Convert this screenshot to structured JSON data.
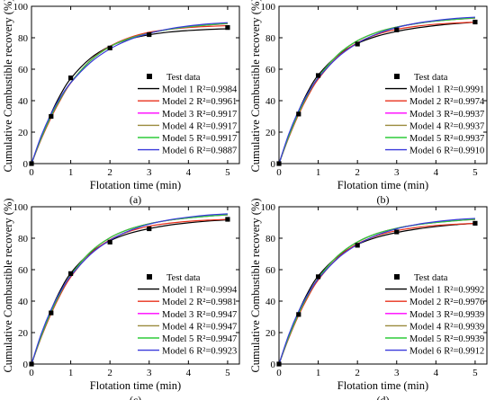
{
  "chart_data": [
    {
      "type": "line",
      "panel_label": "(a)",
      "xlabel": "Flotation time (min)",
      "ylabel": "Cumulative Combustible recovery (%)",
      "xlim": [
        0,
        5.3
      ],
      "ylim": [
        0,
        100
      ],
      "xticks": [
        0,
        1,
        2,
        3,
        4,
        5
      ],
      "yticks": [
        0,
        20,
        40,
        60,
        80,
        100
      ],
      "legend_position": "bottom-right",
      "test_data": {
        "name": "Test data",
        "x": [
          0,
          0.5,
          1,
          2,
          3,
          5
        ],
        "y": [
          0,
          30,
          54.5,
          73.5,
          82,
          86.5
        ]
      },
      "series": [
        {
          "name": "Model 1",
          "r2": "R²=0.9984",
          "color": "#000000",
          "x": [
            0,
            0.25,
            0.5,
            0.75,
            1,
            1.5,
            2,
            2.5,
            3,
            3.5,
            4,
            4.5,
            5
          ],
          "y": [
            0,
            16.7,
            31.8,
            44.3,
            54.1,
            66.9,
            74.6,
            79.2,
            81.9,
            83.6,
            84.6,
            85.3,
            85.7
          ]
        },
        {
          "name": "Model 2",
          "r2": "R²=0.9961",
          "color": "#e8301c",
          "x": [
            0,
            0.25,
            0.5,
            0.75,
            1,
            1.5,
            2,
            2.5,
            3,
            3.5,
            4,
            4.5,
            5
          ],
          "y": [
            0,
            15.6,
            29.3,
            41.1,
            51.2,
            65.6,
            74.6,
            80.1,
            83.5,
            85.3,
            86.5,
            87.2,
            87.7
          ]
        },
        {
          "name": "Model 3",
          "r2": "R²=0.9917",
          "color": "#ff00ff",
          "x": [
            0,
            0.25,
            0.5,
            0.75,
            1,
            1.5,
            2,
            2.5,
            3,
            3.5,
            4,
            4.5,
            5
          ],
          "y": [
            0,
            16.4,
            30.3,
            41.8,
            51.5,
            65.4,
            74.3,
            79.6,
            82.9,
            85.3,
            87.0,
            88.1,
            89.0
          ]
        },
        {
          "name": "Model 4",
          "r2": "R²=0.9917",
          "color": "#9a8a3c",
          "x": [
            0,
            0.25,
            0.5,
            0.75,
            1,
            1.5,
            2,
            2.5,
            3,
            3.5,
            4,
            4.5,
            5
          ],
          "y": [
            0,
            16.4,
            30.3,
            41.8,
            51.5,
            65.4,
            74.3,
            79.6,
            82.9,
            85.3,
            87.0,
            88.1,
            89.0
          ]
        },
        {
          "name": "Model 5",
          "r2": "R²=0.9917",
          "color": "#2ecc3a",
          "x": [
            0,
            0.25,
            0.5,
            0.75,
            1,
            1.5,
            2,
            2.5,
            3,
            3.5,
            4,
            4.5,
            5
          ],
          "y": [
            0,
            16.4,
            30.3,
            41.8,
            51.5,
            65.4,
            74.3,
            79.6,
            82.9,
            85.3,
            87.0,
            88.1,
            89.3
          ]
        },
        {
          "name": "Model 6",
          "r2": "R²=0.9887",
          "color": "#3a3adb",
          "x": [
            0,
            0.25,
            0.5,
            0.75,
            1,
            1.5,
            2,
            2.5,
            3,
            3.5,
            4,
            4.5,
            5
          ],
          "y": [
            0,
            17.7,
            31.6,
            42.6,
            51.4,
            64.2,
            72.9,
            78.8,
            82.8,
            85.6,
            87.5,
            88.8,
            89.6
          ]
        }
      ]
    },
    {
      "type": "line",
      "panel_label": "(b)",
      "xlabel": "Flotation time (min)",
      "ylabel": "Cumulative Combustible recovery (%)",
      "xlim": [
        0,
        5.3
      ],
      "ylim": [
        0,
        100
      ],
      "xticks": [
        0,
        1,
        2,
        3,
        4,
        5
      ],
      "yticks": [
        0,
        20,
        40,
        60,
        80,
        100
      ],
      "legend_position": "bottom-right",
      "test_data": {
        "name": "Test data",
        "x": [
          0,
          0.5,
          1,
          2,
          3,
          5
        ],
        "y": [
          0,
          31.5,
          56,
          76,
          85,
          90
        ]
      },
      "series": [
        {
          "name": "Model 1",
          "r2": "R²=0.9991",
          "color": "#000000",
          "x": [
            0,
            0.25,
            0.5,
            0.75,
            1,
            1.5,
            2,
            2.5,
            3,
            3.5,
            4,
            4.5,
            5
          ],
          "y": [
            0,
            17.5,
            33.4,
            46.4,
            56.3,
            68.9,
            76.4,
            81.0,
            84.0,
            86.2,
            87.8,
            89.0,
            89.9
          ]
        },
        {
          "name": "Model 2",
          "r2": "R²=0.9974",
          "color": "#e8301c",
          "x": [
            0,
            0.25,
            0.5,
            0.75,
            1,
            1.5,
            2,
            2.5,
            3,
            3.5,
            4,
            4.5,
            5
          ],
          "y": [
            0,
            16.6,
            31.2,
            43.5,
            53.7,
            68.0,
            76.8,
            82.1,
            85.3,
            87.3,
            88.6,
            89.4,
            89.9
          ]
        },
        {
          "name": "Model 3",
          "r2": "R²=0.9937",
          "color": "#ff00ff",
          "x": [
            0,
            0.25,
            0.5,
            0.75,
            1,
            1.5,
            2,
            2.5,
            3,
            3.5,
            4,
            4.5,
            5
          ],
          "y": [
            0,
            17.4,
            32.3,
            44.6,
            54.8,
            69.2,
            78.1,
            83.5,
            86.8,
            89.0,
            90.6,
            91.7,
            92.5
          ]
        },
        {
          "name": "Model 4",
          "r2": "R²=0.9937",
          "color": "#9a8a3c",
          "x": [
            0,
            0.25,
            0.5,
            0.75,
            1,
            1.5,
            2,
            2.5,
            3,
            3.5,
            4,
            4.5,
            5
          ],
          "y": [
            0,
            17.4,
            32.3,
            44.6,
            54.8,
            69.2,
            78.1,
            83.5,
            86.8,
            89.0,
            90.6,
            91.7,
            92.5
          ]
        },
        {
          "name": "Model 5",
          "r2": "R²=0.9937",
          "color": "#2ecc3a",
          "x": [
            0,
            0.25,
            0.5,
            0.75,
            1,
            1.5,
            2,
            2.5,
            3,
            3.5,
            4,
            4.5,
            5
          ],
          "y": [
            0,
            17.4,
            32.3,
            44.6,
            54.8,
            69.2,
            78.1,
            83.5,
            86.8,
            89.0,
            90.6,
            91.7,
            92.7
          ]
        },
        {
          "name": "Model 6",
          "r2": "R²=0.9910",
          "color": "#3a3adb",
          "x": [
            0,
            0.25,
            0.5,
            0.75,
            1,
            1.5,
            2,
            2.5,
            3,
            3.5,
            4,
            4.5,
            5
          ],
          "y": [
            0,
            18.8,
            33.6,
            45.2,
            54.4,
            67.6,
            76.5,
            82.5,
            86.5,
            89.2,
            91.0,
            92.3,
            93.1
          ]
        }
      ]
    },
    {
      "type": "line",
      "panel_label": "(c)",
      "xlabel": "Flotation time (min)",
      "ylabel": "Cumulative Combustible recovery (%)",
      "xlim": [
        0,
        5.3
      ],
      "ylim": [
        0,
        100
      ],
      "xticks": [
        0,
        1,
        2,
        3,
        4,
        5
      ],
      "yticks": [
        0,
        20,
        40,
        60,
        80,
        100
      ],
      "legend_position": "bottom-right",
      "test_data": {
        "name": "Test data",
        "x": [
          0,
          0.5,
          1,
          2,
          3,
          5
        ],
        "y": [
          0,
          32.5,
          57.5,
          77.5,
          86,
          92
        ]
      },
      "series": [
        {
          "name": "Model 1",
          "r2": "R²=0.9994",
          "color": "#000000",
          "x": [
            0,
            0.25,
            0.5,
            0.75,
            1,
            1.5,
            2,
            2.5,
            3,
            3.5,
            4,
            4.5,
            5
          ],
          "y": [
            0,
            18.0,
            34.3,
            47.6,
            57.8,
            70.7,
            78.4,
            83.1,
            86.1,
            88.3,
            89.8,
            90.9,
            91.7
          ]
        },
        {
          "name": "Model 2",
          "r2": "R²=0.9981",
          "color": "#e8301c",
          "x": [
            0,
            0.25,
            0.5,
            0.75,
            1,
            1.5,
            2,
            2.5,
            3,
            3.5,
            4,
            4.5,
            5
          ],
          "y": [
            0,
            17.1,
            32.1,
            44.8,
            55.3,
            70.0,
            79.0,
            84.4,
            87.6,
            89.5,
            90.7,
            91.5,
            92.0
          ]
        },
        {
          "name": "Model 3",
          "r2": "R²=0.9947",
          "color": "#ff00ff",
          "x": [
            0,
            0.25,
            0.5,
            0.75,
            1,
            1.5,
            2,
            2.5,
            3,
            3.5,
            4,
            4.5,
            5
          ],
          "y": [
            0,
            17.9,
            33.2,
            45.9,
            56.4,
            71.2,
            80.3,
            85.8,
            89.2,
            91.4,
            92.9,
            94.0,
            94.8
          ]
        },
        {
          "name": "Model 4",
          "r2": "R²=0.9947",
          "color": "#9a8a3c",
          "x": [
            0,
            0.25,
            0.5,
            0.75,
            1,
            1.5,
            2,
            2.5,
            3,
            3.5,
            4,
            4.5,
            5
          ],
          "y": [
            0,
            17.9,
            33.2,
            45.9,
            56.4,
            71.2,
            80.3,
            85.8,
            89.2,
            91.4,
            92.9,
            94.0,
            94.8
          ]
        },
        {
          "name": "Model 5",
          "r2": "R²=0.9947",
          "color": "#2ecc3a",
          "x": [
            0,
            0.25,
            0.5,
            0.75,
            1,
            1.5,
            2,
            2.5,
            3,
            3.5,
            4,
            4.5,
            5
          ],
          "y": [
            0,
            17.9,
            33.2,
            45.9,
            56.4,
            71.2,
            80.3,
            85.8,
            89.2,
            91.4,
            92.9,
            94.0,
            95.0
          ]
        },
        {
          "name": "Model 6",
          "r2": "R²=0.9923",
          "color": "#3a3adb",
          "x": [
            0,
            0.25,
            0.5,
            0.75,
            1,
            1.5,
            2,
            2.5,
            3,
            3.5,
            4,
            4.5,
            5
          ],
          "y": [
            0,
            19.3,
            34.6,
            46.5,
            56.0,
            69.6,
            78.7,
            84.8,
            88.9,
            91.6,
            93.4,
            94.7,
            95.5
          ]
        }
      ]
    },
    {
      "type": "line",
      "panel_label": "(d)",
      "xlabel": "Flotation time (min)",
      "ylabel": "Cumulative Combustible recovery (%)",
      "xlim": [
        0,
        5.3
      ],
      "ylim": [
        0,
        100
      ],
      "xticks": [
        0,
        1,
        2,
        3,
        4,
        5
      ],
      "yticks": [
        0,
        20,
        40,
        60,
        80,
        100
      ],
      "legend_position": "bottom-right",
      "test_data": {
        "name": "Test data",
        "x": [
          0,
          0.5,
          1,
          2,
          3,
          5
        ],
        "y": [
          0,
          31.5,
          55.5,
          75.5,
          84,
          89.5
        ]
      },
      "series": [
        {
          "name": "Model 1",
          "r2": "R²=0.9992",
          "color": "#000000",
          "x": [
            0,
            0.25,
            0.5,
            0.75,
            1,
            1.5,
            2,
            2.5,
            3,
            3.5,
            4,
            4.5,
            5
          ],
          "y": [
            0,
            17.4,
            33.2,
            46.1,
            56.0,
            68.5,
            76.0,
            80.6,
            83.6,
            85.8,
            87.4,
            88.6,
            89.4
          ]
        },
        {
          "name": "Model 2",
          "r2": "R²=0.9976",
          "color": "#e8301c",
          "x": [
            0,
            0.25,
            0.5,
            0.75,
            1,
            1.5,
            2,
            2.5,
            3,
            3.5,
            4,
            4.5,
            5
          ],
          "y": [
            0,
            16.5,
            31.0,
            43.2,
            53.4,
            67.6,
            76.4,
            81.6,
            84.8,
            86.8,
            88.1,
            88.9,
            89.4
          ]
        },
        {
          "name": "Model 3",
          "r2": "R²=0.9939",
          "color": "#ff00ff",
          "x": [
            0,
            0.25,
            0.5,
            0.75,
            1,
            1.5,
            2,
            2.5,
            3,
            3.5,
            4,
            4.5,
            5
          ],
          "y": [
            0,
            17.3,
            32.1,
            44.3,
            54.5,
            68.8,
            77.6,
            83.0,
            86.3,
            88.5,
            90.0,
            91.1,
            91.9
          ]
        },
        {
          "name": "Model 4",
          "r2": "R²=0.9939",
          "color": "#9a8a3c",
          "x": [
            0,
            0.25,
            0.5,
            0.75,
            1,
            1.5,
            2,
            2.5,
            3,
            3.5,
            4,
            4.5,
            5
          ],
          "y": [
            0,
            17.3,
            32.1,
            44.3,
            54.5,
            68.8,
            77.6,
            83.0,
            86.3,
            88.5,
            90.0,
            91.1,
            91.9
          ]
        },
        {
          "name": "Model 5",
          "r2": "R²=0.9939",
          "color": "#2ecc3a",
          "x": [
            0,
            0.25,
            0.5,
            0.75,
            1,
            1.5,
            2,
            2.5,
            3,
            3.5,
            4,
            4.5,
            5
          ],
          "y": [
            0,
            17.3,
            32.1,
            44.3,
            54.5,
            68.8,
            77.6,
            83.0,
            86.3,
            88.5,
            90.0,
            91.1,
            92.1
          ]
        },
        {
          "name": "Model 6",
          "r2": "R²=0.9912",
          "color": "#3a3adb",
          "x": [
            0,
            0.25,
            0.5,
            0.75,
            1,
            1.5,
            2,
            2.5,
            3,
            3.5,
            4,
            4.5,
            5
          ],
          "y": [
            0,
            18.7,
            33.4,
            44.9,
            54.1,
            67.2,
            76.0,
            82.0,
            86.0,
            88.7,
            90.5,
            91.8,
            92.6
          ]
        }
      ]
    }
  ]
}
